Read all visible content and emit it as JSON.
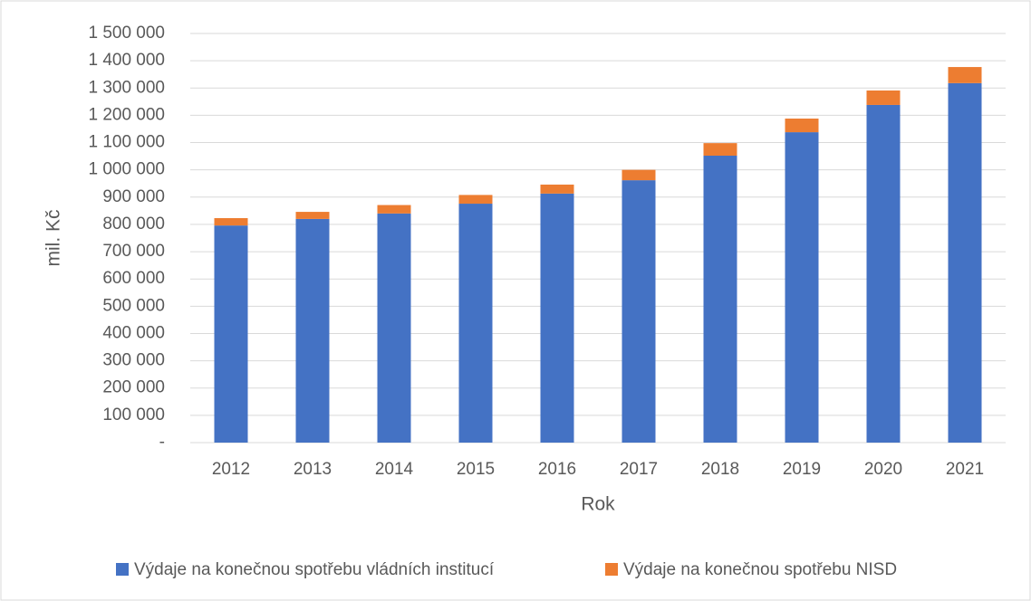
{
  "chart_data": {
    "type": "stacked_bar",
    "x_label": "Rok",
    "y_label": "mil. Kč",
    "categories": [
      "2012",
      "2013",
      "2014",
      "2015",
      "2016",
      "2017",
      "2018",
      "2019",
      "2020",
      "2021"
    ],
    "series": [
      {
        "name": "Výdaje na konečnou spotřebu vládních institucí",
        "color": "#4472c4",
        "values": [
          796000,
          820000,
          840000,
          876000,
          913000,
          962000,
          1052000,
          1138000,
          1238000,
          1318000
        ]
      },
      {
        "name": "Výdaje na konečnou spotřebu NISD",
        "color": "#ed7d31",
        "values": [
          27000,
          26000,
          31000,
          32000,
          33000,
          38000,
          46000,
          50000,
          53000,
          59000
        ]
      }
    ],
    "ylim": [
      0,
      1500000
    ],
    "yticks": [
      {
        "value": 0,
        "label": "-"
      },
      {
        "value": 100000,
        "label": "100 000"
      },
      {
        "value": 200000,
        "label": "200 000"
      },
      {
        "value": 300000,
        "label": "300 000"
      },
      {
        "value": 400000,
        "label": "400 000"
      },
      {
        "value": 500000,
        "label": "500 000"
      },
      {
        "value": 600000,
        "label": "600 000"
      },
      {
        "value": 700000,
        "label": "700 000"
      },
      {
        "value": 800000,
        "label": "800 000"
      },
      {
        "value": 900000,
        "label": "900 000"
      },
      {
        "value": 1000000,
        "label": "1 000 000"
      },
      {
        "value": 1100000,
        "label": "1 100 000"
      },
      {
        "value": 1200000,
        "label": "1 200 000"
      },
      {
        "value": 1300000,
        "label": "1 300 000"
      },
      {
        "value": 1400000,
        "label": "1 400 000"
      },
      {
        "value": 1500000,
        "label": "1 500 000"
      }
    ],
    "grid": true,
    "legend": "bottom"
  }
}
